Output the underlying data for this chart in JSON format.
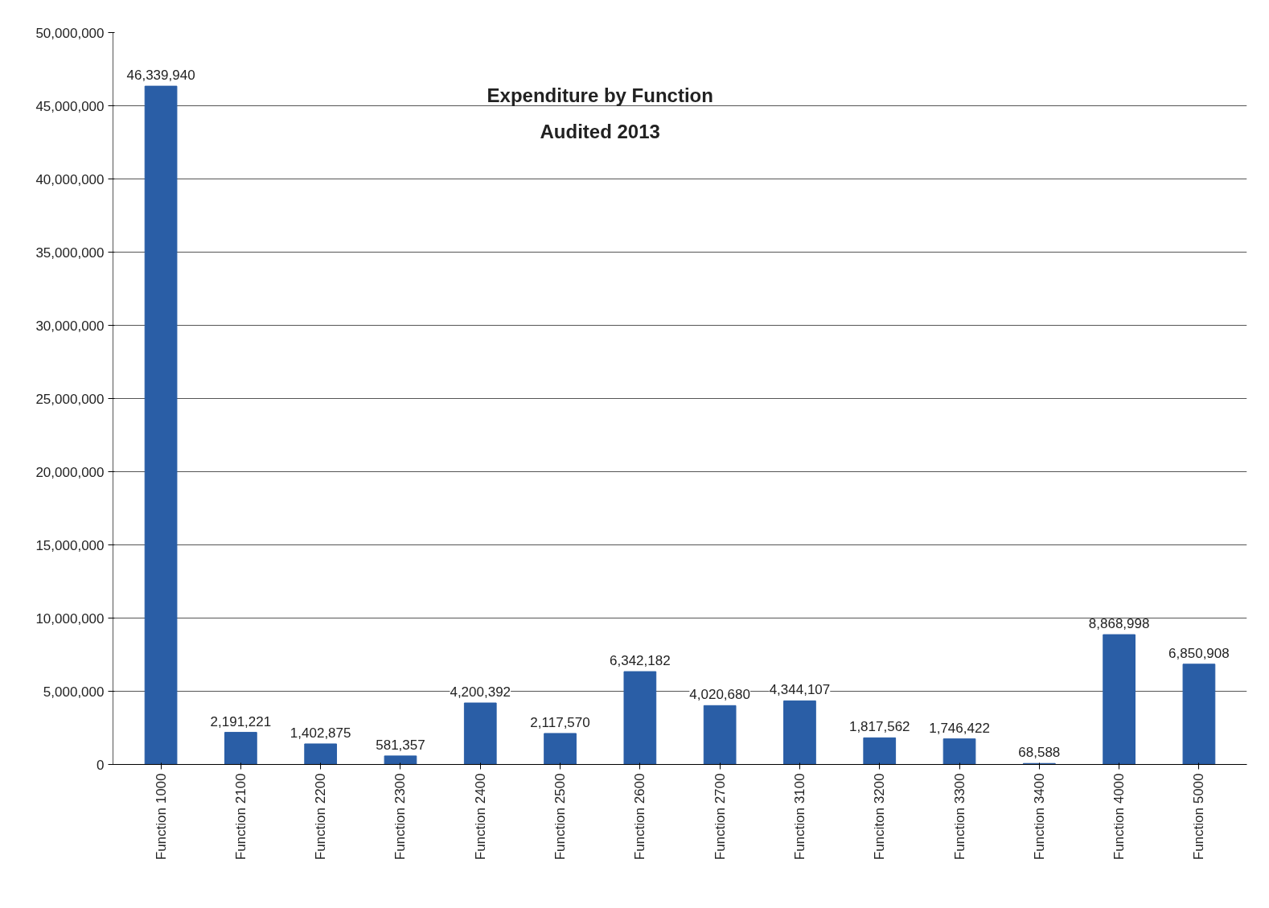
{
  "chart_data": {
    "type": "bar",
    "title": "Expenditure by Function\nAudited 2013",
    "categories": [
      "Function 1000",
      "Function 2100",
      "Function 2200",
      "Function 2300",
      "Function 2400",
      "Function 2500",
      "Function 2600",
      "Function 2700",
      "Function 3100",
      "Funciton 3200",
      "Function 3300",
      "Function 3400",
      "Function 4000",
      "Function 5000"
    ],
    "values": [
      46339940,
      2191221,
      1402875,
      581357,
      4200392,
      2117570,
      6342182,
      4020680,
      4344107,
      1817562,
      1746422,
      68588,
      8868998,
      6850908
    ],
    "value_labels": [
      "46,339,940",
      "2,191,221",
      "1,402,875",
      "581,357",
      "4,200,392",
      "2,117,570",
      "6,342,182",
      "4,020,680",
      "4,344,107",
      "1,817,562",
      "1,746,422",
      "68,588",
      "8,868,998",
      "6,850,908"
    ],
    "color": "#2a5ea6",
    "ylim": [
      0,
      50000000
    ],
    "yticks": [
      0,
      {
        "value": 5000000,
        "label": "5,000,000"
      },
      {
        "value": 10000000,
        "label": "10,000,000"
      },
      {
        "value": 15000000,
        "label": "15,000,000"
      },
      {
        "value": 20000000,
        "label": "20,000,000"
      },
      {
        "value": 25000000,
        "label": "25,000,000"
      },
      {
        "value": 30000000,
        "label": "30,000,000"
      },
      {
        "value": 35000000,
        "label": "35,000,000"
      },
      {
        "value": 40000000,
        "label": "40,000,000"
      },
      {
        "value": 45000000,
        "label": "45,000,000"
      },
      {
        "value": 50000000,
        "label": "50,000,000"
      }
    ],
    "grid": "y"
  }
}
